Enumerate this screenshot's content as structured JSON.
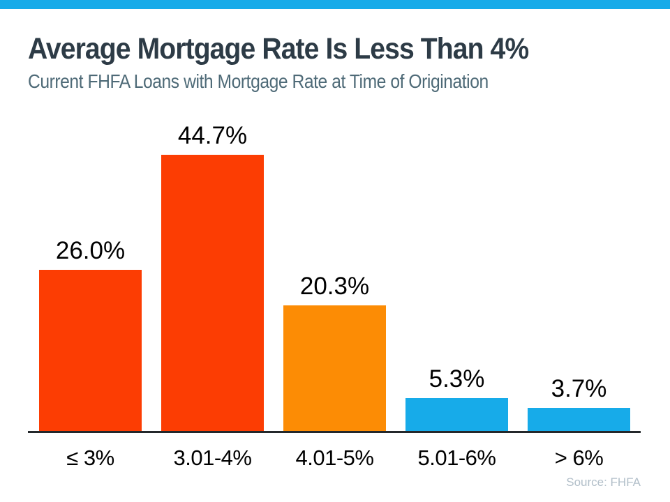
{
  "page": {
    "colors": {
      "top_bar": "#17abe9",
      "title_text": "#2d3b46",
      "subtitle_text": "#4e6a77",
      "value_label_text": "#000000",
      "axis_label_text": "#000000",
      "axis_line": "#24282b",
      "source_text": "#b2bfc9"
    }
  },
  "chart_data": {
    "type": "bar",
    "title": "Average Mortgage Rate Is Less Than 4%",
    "subtitle": "Current FHFA Loans with Mortgage Rate at Time of Origination",
    "categories": [
      "≤ 3%",
      "3.01-4%",
      "4.01-5%",
      "5.01-6%",
      "> 6%"
    ],
    "values": [
      26.0,
      44.7,
      20.3,
      5.3,
      3.7
    ],
    "data_labels": [
      "26.0%",
      "44.7%",
      "20.3%",
      "5.3%",
      "3.7%"
    ],
    "bar_colors": [
      "#fc3d03",
      "#fc3d03",
      "#fc8c05",
      "#17abe9",
      "#17abe9"
    ],
    "xlabel": "",
    "ylabel": "",
    "ylim": [
      0,
      50
    ],
    "grid": false,
    "legend": "none",
    "source": "Source: FHFA"
  }
}
